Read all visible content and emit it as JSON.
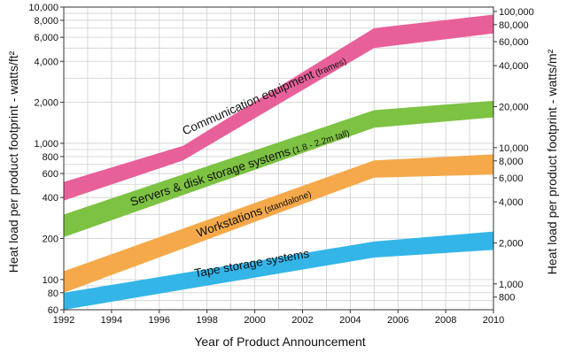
{
  "chart_data": {
    "type": "area",
    "x_title": "Year of Product Announcement",
    "y_left_title": "Heat load per product footprint - watts/ft²",
    "y_right_title": "Heat load per product footprint - watts/m²",
    "x_ticks": [
      "1992",
      "1994",
      "1996",
      "1998",
      "2000",
      "2002",
      "2004",
      "2006",
      "2008",
      "2010"
    ],
    "y_left_ticks": [
      "60",
      "80",
      "100",
      "200",
      "400",
      "600",
      "800",
      "1,000",
      "2,000",
      "4,000",
      "6,000",
      "8,000",
      "10,000"
    ],
    "y_right_ticks": [
      "800",
      "1,000",
      "2,000",
      "4,000",
      "6,000",
      "8,000",
      "10,000",
      "20,000",
      "40,000",
      "60,000",
      "80,000",
      "100,000"
    ],
    "xlim": [
      1992,
      2010
    ],
    "ylim_left": [
      60,
      10000
    ],
    "y_scale": "log",
    "grid": true,
    "series": [
      {
        "name": "Communication equipment",
        "name_suffix": "(frames)",
        "color": "#e8609a",
        "x": [
          1992,
          1997,
          2005,
          2010
        ],
        "low": [
          380,
          750,
          5000,
          6400
        ],
        "high": [
          520,
          960,
          7000,
          8800
        ]
      },
      {
        "name": "Servers & disk storage systems",
        "name_suffix": "(1.8 - 2.2m tall)",
        "color": "#7dc242",
        "x": [
          1992,
          2005,
          2010
        ],
        "low": [
          205,
          1300,
          1550
        ],
        "high": [
          300,
          1750,
          2050
        ]
      },
      {
        "name": "Workstations",
        "name_suffix": "(standalone)",
        "color": "#f5a94a",
        "x": [
          1992,
          2005,
          2010
        ],
        "low": [
          80,
          560,
          590
        ],
        "high": [
          115,
          750,
          830
        ]
      },
      {
        "name": "Tape storage systems",
        "name_suffix": "",
        "color": "#33b5e8",
        "x": [
          1992,
          2005,
          2010
        ],
        "low": [
          60,
          145,
          165
        ],
        "high": [
          80,
          190,
          225
        ]
      }
    ]
  }
}
